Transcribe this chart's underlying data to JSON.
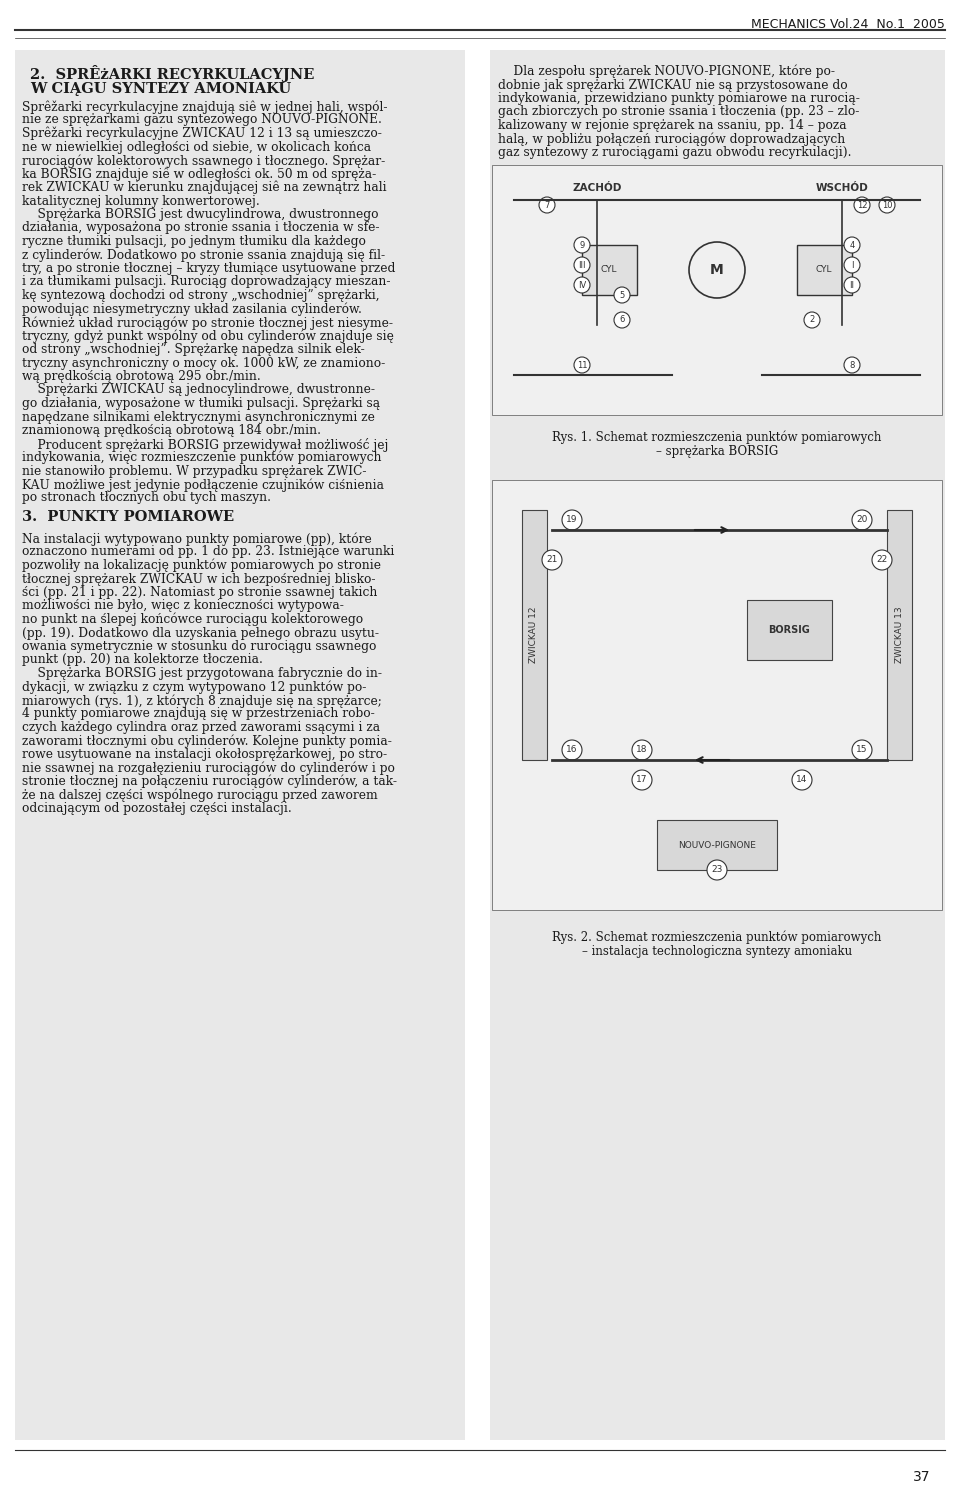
{
  "page_width": 9.6,
  "page_height": 14.9,
  "bg_color": "#ffffff",
  "header_text": "MECHANICS Vol.24  No.1  2005",
  "footer_number": "37",
  "col1_title_line1": "2.  SPRÊżARKI RECYRKULACYJNE",
  "col1_title_line2": "W CIĄGU SYNTEZY AMONIAKU",
  "col1_para1": "Sprężarki recyrkulacyjne znajdują się w jednej hali, wspól-\nnie ze sprężarkami gazu syntezowego NOUVO-PIGNONE.\nSprężarki recyrkulacyjne ZWICKAU 12 i 13 są umieszczo-\nne w niewielkiej odległości od siebie, w okolicach końca\nrurociągów kolektorowych ssawnego i tłocznego. Sprężar-\nka BORSIG znajduje się w odległości ok. 50 m od spręża-\nrek ZWICKAU w kierunku znajdującej się na zewnątrz hali\nkatalitycznej kolumny konwertorowej.",
  "col1_para2": "    Sprężarka BORSIG jest dwucylindrowa, dwustronnego\ndziałania, wyposażona po stronie ssania i tłoczenia w sfe-\nryczne tłumiki pulsacji, po jednym tłumiku dla każdego\nz cylinderów. Dodatkowo po stronie ssania znajdują się fil-\ntry, a po stronie tłocznej – kryzy tłumiące usytuowane przed\ni za tłumikami pulsacji. Rurociąg doprowadzający mieszan-\nkę syntezową dochodzi od strony „wschodniej” sprężarki,\npowodując niesymetryczny układ zasilania cylinderów.\nRównież układ rurociągów po stronie tłocznej jest niesyme-\ntryczny, gdyż punkt wspólny od obu cylinderów znajduje się\nod strony „wschodniej”. Sprężarkę napędza silnik elek-\ntryczny asynchroniczny o mocy ok. 1000 kW, ze znamiono-\nwą prędkością obrotową 295 obr./min.",
  "col1_para3": "    Sprężarki ZWICKAU są jednocylindrowe, dwustronne-\ngo działania, wyposażone w tłumiki pulsacji. Sprężarki są\nnapędzane silnikami elektrycznymi asynchronicznymi ze\nznamionową prędkością obrotową 184 obr./min.",
  "col1_para4": "    Producent sprężarki BORSIG przewidywał możliwość jej\nindykowania, więc rozmieszczenie punktów pomiarowych\nnie stanowiło problemu. W przypadku sprężarek ZWIC-\nKAU możliwe jest jedynie podłączenie czujników ciśnienia\npo stronach tłocznych obu tych maszyn.",
  "col1_section3_title": "3.  PUNKTY POMIAROWE",
  "col1_para5": "Na instalacji wytypowano punkty pomiarowe (pp), które\noznaczono numerami od pp. 1 do pp. 23. Istniejące warunki\npozwoliły na lokalizację punktów pomiarowych po stronie\ntłocznej sprężarek ZWICKAU w ich bezpośrednief blisko-ści (pp. 21 i pp. 22). Natomiast po stronie ssawnej takich\nmożliwości nie było, więc z konieczności wytypowa-\nno punkt na ślepej końcówce rurociągu kolektorowego\n(pp. 19). Dodatkowo dla uzyskania pełnego obrazu usytu-\nowania symetrycznie w stosunku do rurociągu ssawnego\npunkt (pp. 20) na kolektorze tłoczenia.",
  "col1_para6": "    Sprężarka BORSIG jest przygotowana fabrycznie do in-\ndykacji, w związku z czym wytypowano 12 punktów po-\nmiarowych (rys. 1), z których 8 znajduje się na sprężarce;\n4 punkty pomiarowe znajdują się w przestrzeniach robo-\nczych każdego cylindra oraz przed zaworami ssącymi i za\nzaworami tłocznymi obu cylinderów. Kolejne punkty pomia-\nrowe usytuowane na instalacji okołosprężarkowej, po stro-\nnie ssawnej na rozgałęzieniu rurociągów do cylinderów i po\nstronie tłocznej na połączeniu rurociągów cylinderów, a tak-\nże na dalszej części wspólnego rurociągu przed zaworem\nodcinającym od pozostałej części instalacji.",
  "col2_para1": "    Dla zespołu sprężarek NOUVO-PIGNONE, które po-\ndobnie jak sprężarki ZWICKAU nie są przystosowane do\nindykowania, przewidziano punkty pomiarowe na rurocią-\ngach zbiorczych po stronie ssania i tłoczenia (pp. 23 – zlo-\nkalizowany w rejonie sprężarek na ssaniu, pp. 14 – poza\nhalą, w pobliżu połączeń rurociągów doprowadzających\ngaz syntezowy z rurociągami gazu obwodu recyrkulacji).",
  "rys1_caption": "Rys. 1. Schemat rozmieszczenia punktów pomiarowych\n– sprężarka BORSIG",
  "rys2_caption": "Rys. 2. Schemat rozmieszczenia punktów pomiarowych\n– instalacja technologiczna syntezy amoniaku",
  "text_color": "#1a1a1a",
  "diagram_bg": "#e8e8e8",
  "col_bg": "#e8e8e8"
}
